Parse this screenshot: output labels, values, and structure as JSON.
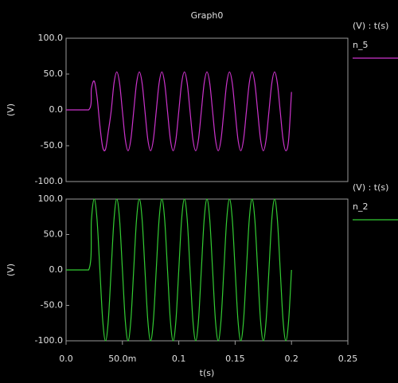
{
  "chart_data": [
    {
      "type": "line",
      "title": "Graph0",
      "legend_title": "(V) : t(s)",
      "ylabel": "(V)",
      "x": [
        0,
        0.02,
        0.0225,
        0.025,
        0.0275,
        0.03,
        0.0325,
        0.035,
        0.0375,
        0.04,
        0.0425,
        0.045,
        0.0475,
        0.05,
        0.0525,
        0.055,
        0.0575,
        0.06,
        0.0625,
        0.065,
        0.0675,
        0.07,
        0.0725,
        0.075,
        0.0775,
        0.08,
        0.0825,
        0.085,
        0.0875,
        0.09,
        0.0925,
        0.095,
        0.0975,
        0.1,
        0.1025,
        0.105,
        0.1075,
        0.11,
        0.1125,
        0.115,
        0.1175,
        0.12,
        0.1225,
        0.125,
        0.1275,
        0.13,
        0.1325,
        0.135,
        0.1375,
        0.14,
        0.1425,
        0.145,
        0.1475,
        0.15,
        0.1525,
        0.155,
        0.1575,
        0.16,
        0.1625,
        0.165,
        0.1675,
        0.17,
        0.1725,
        0.175,
        0.1775,
        0.18,
        0.1825,
        0.185,
        0.1875,
        0.19,
        0.1925,
        0.195,
        0.1975,
        0.2
      ],
      "series": [
        {
          "name": "n_5",
          "color": "#cc33cc",
          "values": [
            0,
            0,
            30,
            40,
            18,
            -22,
            -52,
            -55,
            -30,
            -2,
            36.9,
            53,
            36.9,
            -2,
            -40.9,
            -57,
            -40.9,
            -2,
            36.9,
            53,
            36.9,
            -2,
            -40.9,
            -57,
            -40.9,
            -2,
            36.9,
            53,
            36.9,
            -2,
            -40.9,
            -57,
            -40.9,
            -2,
            36.9,
            53,
            36.9,
            -2,
            -40.9,
            -57,
            -40.9,
            -2,
            36.9,
            53,
            36.9,
            -2,
            -40.9,
            -57,
            -40.9,
            -2,
            36.9,
            53,
            36.9,
            -2,
            -40.9,
            -57,
            -40.9,
            -2,
            36.9,
            53,
            36.9,
            -2,
            -40.9,
            -57,
            -40.9,
            -2,
            36.9,
            53,
            36.9,
            -2,
            -40.9,
            -57,
            -40.9,
            25
          ]
        }
      ],
      "xlim": [
        0,
        0.25
      ],
      "ylim": [
        -100,
        100
      ],
      "yticks": [
        {
          "value": -100,
          "label": "-100.0"
        },
        {
          "value": -50,
          "label": "-50.0"
        },
        {
          "value": 0,
          "label": "0.0"
        },
        {
          "value": 50,
          "label": "50.0"
        },
        {
          "value": 100,
          "label": "100.0"
        }
      ]
    },
    {
      "type": "line",
      "legend_title": "(V) : t(s)",
      "ylabel": "(V)",
      "xlabel": "t(s)",
      "x": [
        0,
        0.02,
        0.0225,
        0.025,
        0.0275,
        0.03,
        0.0325,
        0.035,
        0.0375,
        0.04,
        0.0425,
        0.045,
        0.0475,
        0.05,
        0.0525,
        0.055,
        0.0575,
        0.06,
        0.0625,
        0.065,
        0.0675,
        0.07,
        0.0725,
        0.075,
        0.0775,
        0.08,
        0.0825,
        0.085,
        0.0875,
        0.09,
        0.0925,
        0.095,
        0.0975,
        0.1,
        0.1025,
        0.105,
        0.1075,
        0.11,
        0.1125,
        0.115,
        0.1175,
        0.12,
        0.1225,
        0.125,
        0.1275,
        0.13,
        0.1325,
        0.135,
        0.1375,
        0.14,
        0.1425,
        0.145,
        0.1475,
        0.15,
        0.1525,
        0.155,
        0.1575,
        0.16,
        0.1625,
        0.165,
        0.1675,
        0.17,
        0.1725,
        0.175,
        0.1775,
        0.18,
        0.1825,
        0.185,
        0.1875,
        0.19,
        0.1925,
        0.195,
        0.1975,
        0.2
      ],
      "series": [
        {
          "name": "n_2",
          "color": "#33cc33",
          "values": [
            0,
            0,
            70.7,
            100,
            70.7,
            0,
            -70.7,
            -100,
            -70.7,
            0,
            70.7,
            100,
            70.7,
            0,
            -70.7,
            -100,
            -70.7,
            0,
            70.7,
            100,
            70.7,
            0,
            -70.7,
            -100,
            -70.7,
            0,
            70.7,
            100,
            70.7,
            0,
            -70.7,
            -100,
            -70.7,
            0,
            70.7,
            100,
            70.7,
            0,
            -70.7,
            -100,
            -70.7,
            0,
            70.7,
            100,
            70.7,
            0,
            -70.7,
            -100,
            -70.7,
            0,
            70.7,
            100,
            70.7,
            0,
            -70.7,
            -100,
            -70.7,
            0,
            70.7,
            100,
            70.7,
            0,
            -70.7,
            -100,
            -70.7,
            0,
            70.7,
            100,
            70.7,
            0,
            -70.7,
            -100,
            -70.7,
            0
          ]
        }
      ],
      "xlim": [
        0,
        0.25
      ],
      "ylim": [
        -100,
        100
      ],
      "xticks": [
        {
          "value": 0,
          "label": "0.0"
        },
        {
          "value": 0.05,
          "label": "50.0m"
        },
        0.1,
        0.15,
        0.2,
        0.25
      ],
      "yticks": [
        {
          "value": -100,
          "label": "-100.0"
        },
        {
          "value": -50,
          "label": "-50.0"
        },
        {
          "value": 0,
          "label": "0.0"
        },
        {
          "value": 50,
          "label": "50.0"
        },
        {
          "value": 100,
          "label": "100.0"
        }
      ]
    }
  ]
}
